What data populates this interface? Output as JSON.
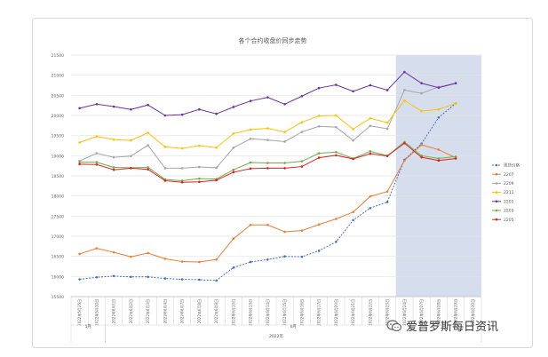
{
  "watermark": {
    "text": "爱普罗斯每日资讯"
  },
  "chart_data": {
    "type": "line",
    "title": "各个合约收盘价同步走势",
    "xlabel": "2022年",
    "ylabel": "",
    "ylim": [
      15500,
      21500
    ],
    "yticks": [
      15500,
      16000,
      16500,
      17000,
      17500,
      18000,
      18500,
      19000,
      19500,
      20000,
      20500,
      21000,
      21500
    ],
    "categories": [
      "2022/5/25",
      "2022/5/30",
      "2022/6/1",
      "2022/6/2",
      "2022/6/3",
      "2022/6/4",
      "2022/6/7",
      "2022/6/8",
      "2022/6/9",
      "2022/6/10",
      "2022/6/13",
      "2022/6/14",
      "2022/6/15",
      "2022/6/16",
      "2022/6/17",
      "2022/6/20",
      "2022/6/21",
      "2022/6/22",
      "2022/6/23",
      "2022/6/24",
      "2022/6/27",
      "2022/6/28",
      "2022/6/29",
      "2022/6/30"
    ],
    "tick_labels": [
      "2022年5月25日",
      "2022年5月30日",
      "2022年6月1日",
      "2022年6月2日",
      "2022年6月3日",
      "2022年6月4日",
      "2022年6月7日",
      "2022年6月8日",
      "2022年6月9日",
      "2022年6月10日",
      "2022年6月13日",
      "2022年6月14日",
      "2022年6月15日",
      "2022年6月16日",
      "2022年6月17日",
      "2022年6月20日",
      "2022年6月21日",
      "2022年6月22日",
      "2022年6月23日",
      "2022年6月24日",
      "2022年6月27日",
      "2022年6月28日",
      "2022年6月29日",
      "2022年6月30日"
    ],
    "month_groups": [
      {
        "label": "5月",
        "start": 0,
        "end": 1
      },
      {
        "label": "6月",
        "start": 2,
        "end": 23
      }
    ],
    "highlight_range": [
      19,
      23
    ],
    "highlight_color": "#d6deee",
    "legend_position": "right",
    "series": [
      {
        "name": "现货价格",
        "color": "#4472c4",
        "dashed": true,
        "values": [
          15930,
          15980,
          16010,
          15990,
          15990,
          15950,
          15930,
          15920,
          15900,
          16220,
          16360,
          16420,
          16500,
          16490,
          16640,
          16860,
          17400,
          17700,
          17850,
          18900,
          19300,
          19950,
          20300,
          null
        ]
      },
      {
        "name": "2207",
        "color": "#ed7d31",
        "dashed": false,
        "values": [
          16560,
          16700,
          16600,
          16490,
          16580,
          16440,
          16370,
          16360,
          16420,
          16940,
          17280,
          17280,
          17110,
          17140,
          17290,
          17430,
          17600,
          17990,
          18110,
          18880,
          19270,
          19150,
          18950,
          null
        ]
      },
      {
        "name": "2209",
        "color": "#a5a5a5",
        "dashed": false,
        "values": [
          18870,
          19060,
          18960,
          18990,
          19260,
          18690,
          18690,
          18720,
          18700,
          19200,
          19420,
          19390,
          19350,
          19590,
          19730,
          19710,
          19380,
          19740,
          19670,
          20630,
          20550,
          20710,
          20800,
          null
        ]
      },
      {
        "name": "2211",
        "color": "#ffc000",
        "dashed": false,
        "values": [
          19330,
          19480,
          19400,
          19380,
          19570,
          19220,
          19180,
          19250,
          19200,
          19550,
          19650,
          19680,
          19590,
          19830,
          19990,
          20000,
          19660,
          19930,
          19820,
          20370,
          20110,
          20150,
          20300,
          null
        ]
      },
      {
        "name": "2201",
        "color": "#7030a0",
        "dashed": false,
        "values": [
          20180,
          20280,
          20220,
          20150,
          20260,
          20000,
          20020,
          20150,
          20040,
          20210,
          20360,
          20450,
          20280,
          20480,
          20680,
          20760,
          20600,
          20750,
          20630,
          21080,
          20800,
          20690,
          20800,
          null
        ]
      },
      {
        "name": "2203",
        "color": "#70ad47",
        "dashed": false,
        "values": [
          18840,
          18840,
          18710,
          18700,
          18710,
          18410,
          18380,
          18430,
          18420,
          18650,
          18830,
          18820,
          18820,
          18860,
          19060,
          19090,
          18930,
          19110,
          19000,
          19340,
          19000,
          18930,
          18980,
          null
        ]
      },
      {
        "name": "2205",
        "color": "#e02020",
        "dashed": false,
        "values": [
          18790,
          18780,
          18650,
          18690,
          18660,
          18380,
          18340,
          18350,
          18390,
          18590,
          18680,
          18690,
          18690,
          18730,
          18950,
          19010,
          18920,
          19050,
          18990,
          19310,
          18960,
          18880,
          18930,
          null
        ]
      }
    ]
  }
}
